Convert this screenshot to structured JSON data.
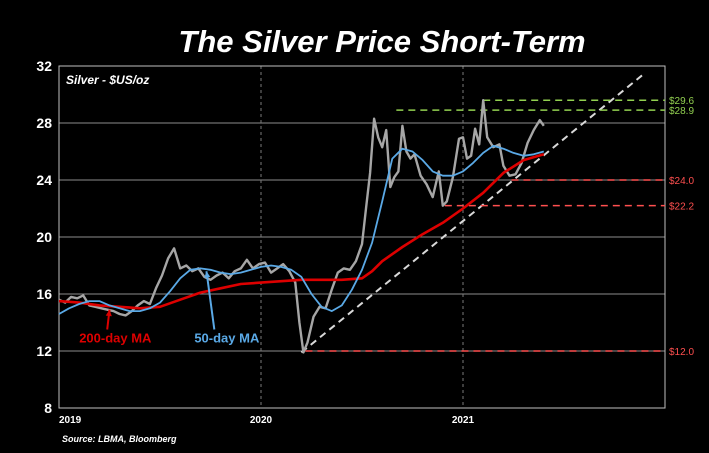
{
  "chart_data": {
    "type": "line",
    "title": "The Silver Price Short-Term",
    "series_label": "Silver - $US/oz",
    "source": "Source: LBMA, Bloomberg",
    "ylim": [
      8,
      32
    ],
    "yticks": [
      8,
      12,
      16,
      20,
      24,
      28,
      32
    ],
    "xlim": [
      2019.0,
      2022.0
    ],
    "xticks": [
      {
        "value": 2019,
        "label": "2019"
      },
      {
        "value": 2020,
        "label": "2020"
      },
      {
        "value": 2021,
        "label": "2021"
      }
    ],
    "grid": true,
    "colors": {
      "silver": "#a6a6a6",
      "ma50": "#5aa9e6",
      "ma200": "#dd0000",
      "green_level": "#92d050",
      "red_level": "#ff4f4f",
      "trend": "#d9d9d9"
    },
    "series": [
      {
        "name": "Silver - $US/oz",
        "key": "silver",
        "x": [
          2019.0,
          2019.03,
          2019.06,
          2019.09,
          2019.12,
          2019.15,
          2019.18,
          2019.21,
          2019.24,
          2019.27,
          2019.3,
          2019.33,
          2019.36,
          2019.39,
          2019.42,
          2019.45,
          2019.48,
          2019.51,
          2019.54,
          2019.57,
          2019.6,
          2019.63,
          2019.66,
          2019.69,
          2019.72,
          2019.75,
          2019.78,
          2019.81,
          2019.84,
          2019.87,
          2019.9,
          2019.93,
          2019.96,
          2019.99,
          2020.02,
          2020.05,
          2020.08,
          2020.11,
          2020.14,
          2020.17,
          2020.19,
          2020.21,
          2020.23,
          2020.26,
          2020.29,
          2020.32,
          2020.35,
          2020.38,
          2020.41,
          2020.44,
          2020.47,
          2020.5,
          2020.52,
          2020.54,
          2020.56,
          2020.58,
          2020.6,
          2020.62,
          2020.64,
          2020.66,
          2020.68,
          2020.7,
          2020.72,
          2020.74,
          2020.76,
          2020.79,
          2020.82,
          2020.85,
          2020.88,
          2020.9,
          2020.92,
          2020.95,
          2020.98,
          2021.0,
          2021.02,
          2021.04,
          2021.06,
          2021.08,
          2021.1,
          2021.12,
          2021.15,
          2021.18,
          2021.2,
          2021.23,
          2021.26,
          2021.29,
          2021.32,
          2021.35,
          2021.38,
          2021.4
        ],
        "y": [
          15.6,
          15.4,
          15.8,
          15.7,
          15.9,
          15.2,
          15.1,
          15.0,
          14.9,
          14.8,
          14.6,
          14.5,
          14.8,
          15.2,
          15.5,
          15.3,
          16.4,
          17.3,
          18.5,
          19.2,
          17.8,
          18.0,
          17.6,
          17.8,
          17.2,
          17.0,
          17.3,
          17.5,
          17.1,
          17.6,
          17.8,
          18.4,
          17.8,
          18.1,
          18.2,
          17.5,
          17.8,
          18.1,
          17.6,
          16.8,
          14.0,
          11.9,
          12.6,
          14.4,
          15.1,
          15.0,
          16.3,
          17.5,
          17.8,
          17.7,
          18.3,
          19.5,
          22.0,
          24.5,
          28.3,
          27.0,
          26.3,
          27.5,
          23.5,
          24.2,
          24.6,
          27.8,
          26.0,
          25.5,
          25.8,
          24.3,
          23.7,
          22.8,
          24.6,
          22.2,
          22.5,
          24.2,
          26.9,
          27.0,
          25.5,
          25.7,
          27.6,
          26.5,
          29.6,
          27.0,
          26.3,
          26.5,
          25.0,
          24.3,
          24.4,
          25.2,
          26.6,
          27.5,
          28.2,
          27.8
        ]
      },
      {
        "name": "50-day MA",
        "key": "ma50",
        "x": [
          2019.0,
          2019.05,
          2019.1,
          2019.15,
          2019.2,
          2019.25,
          2019.3,
          2019.35,
          2019.4,
          2019.45,
          2019.5,
          2019.55,
          2019.6,
          2019.65,
          2019.7,
          2019.75,
          2019.8,
          2019.85,
          2019.9,
          2019.95,
          2020.0,
          2020.05,
          2020.1,
          2020.15,
          2020.2,
          2020.25,
          2020.3,
          2020.35,
          2020.4,
          2020.45,
          2020.5,
          2020.55,
          2020.6,
          2020.65,
          2020.7,
          2020.75,
          2020.8,
          2020.85,
          2020.9,
          2020.95,
          2021.0,
          2021.05,
          2021.1,
          2021.15,
          2021.2,
          2021.25,
          2021.3,
          2021.35,
          2021.4
        ],
        "y": [
          14.6,
          15.0,
          15.3,
          15.5,
          15.5,
          15.2,
          15.0,
          14.8,
          14.8,
          15.0,
          15.4,
          16.2,
          17.1,
          17.7,
          17.8,
          17.7,
          17.5,
          17.4,
          17.5,
          17.7,
          17.9,
          18.0,
          17.9,
          17.7,
          17.2,
          16.0,
          15.1,
          14.8,
          15.2,
          16.3,
          17.7,
          19.6,
          22.5,
          25.5,
          26.2,
          26.0,
          25.4,
          24.6,
          24.3,
          24.3,
          24.6,
          25.2,
          25.9,
          26.4,
          26.2,
          25.9,
          25.7,
          25.8,
          26.0
        ]
      },
      {
        "name": "200-day MA",
        "key": "ma200",
        "x": [
          2019.0,
          2019.1,
          2019.2,
          2019.3,
          2019.4,
          2019.5,
          2019.6,
          2019.7,
          2019.8,
          2019.9,
          2020.0,
          2020.1,
          2020.2,
          2020.3,
          2020.4,
          2020.5,
          2020.55,
          2020.6,
          2020.7,
          2020.8,
          2020.9,
          2021.0,
          2021.1,
          2021.2,
          2021.3,
          2021.4
        ],
        "y": [
          15.5,
          15.4,
          15.2,
          15.1,
          15.0,
          15.1,
          15.6,
          16.1,
          16.4,
          16.7,
          16.8,
          16.9,
          17.0,
          17.0,
          17.0,
          17.1,
          17.6,
          18.3,
          19.3,
          20.2,
          21.0,
          22.0,
          23.1,
          24.5,
          25.4,
          25.8
        ]
      }
    ],
    "trendline": {
      "from": [
        2020.2,
        11.9
      ],
      "to": [
        2021.9,
        31.5
      ]
    },
    "levels": [
      {
        "value": 29.6,
        "label": "$29.6",
        "color": "green",
        "x_start": 2021.1
      },
      {
        "value": 28.9,
        "label": "$28.9",
        "color": "green",
        "x_start": 2020.67
      },
      {
        "value": 24.0,
        "label": "$24.0",
        "color": "red",
        "x_start": 2021.24
      },
      {
        "value": 22.2,
        "label": "$22.2",
        "color": "red",
        "x_start": 2020.91
      },
      {
        "value": 12.0,
        "label": "$12.0",
        "color": "red",
        "x_start": 2020.22
      }
    ],
    "annotations": [
      {
        "text": "200-day MA",
        "color": "#dd0000",
        "x": 2019.1,
        "y": 12.6,
        "arrow_to": [
          2019.25,
          14.9
        ]
      },
      {
        "text": "50-day MA",
        "color": "#5aa9e6",
        "x": 2019.67,
        "y": 12.6,
        "arrow_to": [
          2019.73,
          17.6
        ]
      }
    ]
  }
}
